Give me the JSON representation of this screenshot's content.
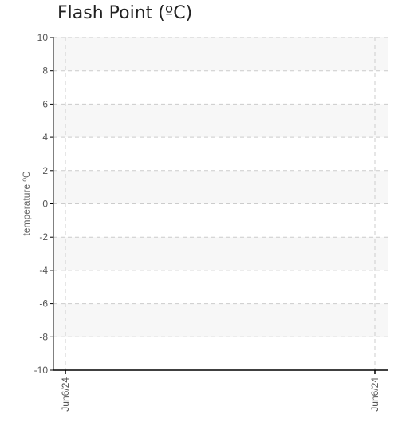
{
  "chart_data": {
    "type": "line",
    "title": "Flash Point (ºC)",
    "ylabel": "temperature ºC",
    "xlabel": "",
    "ylim": [
      -10,
      10
    ],
    "yticks": [
      10,
      8,
      6,
      4,
      2,
      0,
      -2,
      -4,
      -6,
      -8,
      -10
    ],
    "x_ticks": [
      "Jun6/24",
      "Jun6/24"
    ],
    "series": [],
    "grid": true,
    "colors": {
      "axis": "#000000",
      "grid": "#cccccc",
      "band": "#f7f7f7"
    }
  }
}
